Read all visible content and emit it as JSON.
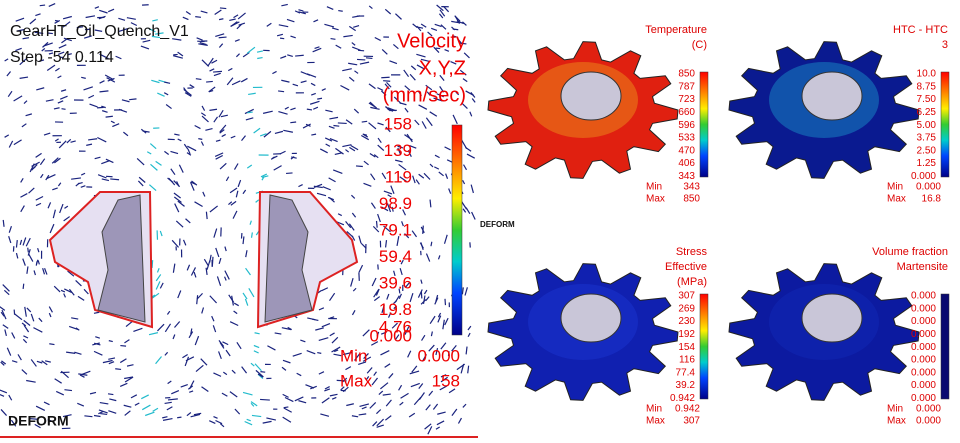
{
  "flow": {
    "title": "GearHT_Oil_Quench_V1",
    "step": "Step -54 0.114",
    "legend_title": [
      "Velocity",
      "X,Y,Z",
      "(mm/sec)"
    ],
    "ticks": [
      "158",
      "139",
      "119",
      "98.9",
      "79.1",
      "59.4",
      "39.6",
      "19.8",
      "4.76",
      "0.000"
    ],
    "min_label": "Min",
    "min": "0.000",
    "max_label": "Max",
    "max": "158",
    "logo": "DEFORM"
  },
  "panels": [
    {
      "title": [
        "Temperature",
        "(C)"
      ],
      "ticks": [
        "850",
        "787",
        "723",
        "660",
        "596",
        "533",
        "470",
        "406",
        "343"
      ],
      "min_label": "Min",
      "min": "343",
      "max_label": "Max",
      "max": "850",
      "logo": "DEFORM"
    },
    {
      "title": [
        "HTC - HTC",
        "3"
      ],
      "ticks": [
        "10.0",
        "8.75",
        "7.50",
        "6.25",
        "5.00",
        "3.75",
        "2.50",
        "1.25",
        "0.000"
      ],
      "min_label": "Min",
      "min": "0.000",
      "max_label": "Max",
      "max": "16.8"
    },
    {
      "title": [
        "Stress",
        "Effective",
        "(MPa)"
      ],
      "ticks": [
        "307",
        "269",
        "230",
        "192",
        "154",
        "116",
        "77.4",
        "39.2",
        "0.942"
      ],
      "min_label": "Min",
      "min": "0.942",
      "max_label": "Max",
      "max": "307"
    },
    {
      "title": [
        "Volume fraction",
        "Martensite"
      ],
      "ticks": [
        "0.000",
        "0.000",
        "0.000",
        "0.000",
        "0.000",
        "0.000",
        "0.000",
        "0.000",
        "0.000"
      ],
      "min_label": "Min",
      "min": "0.000",
      "max_label": "Max",
      "max": "0.000"
    }
  ]
}
